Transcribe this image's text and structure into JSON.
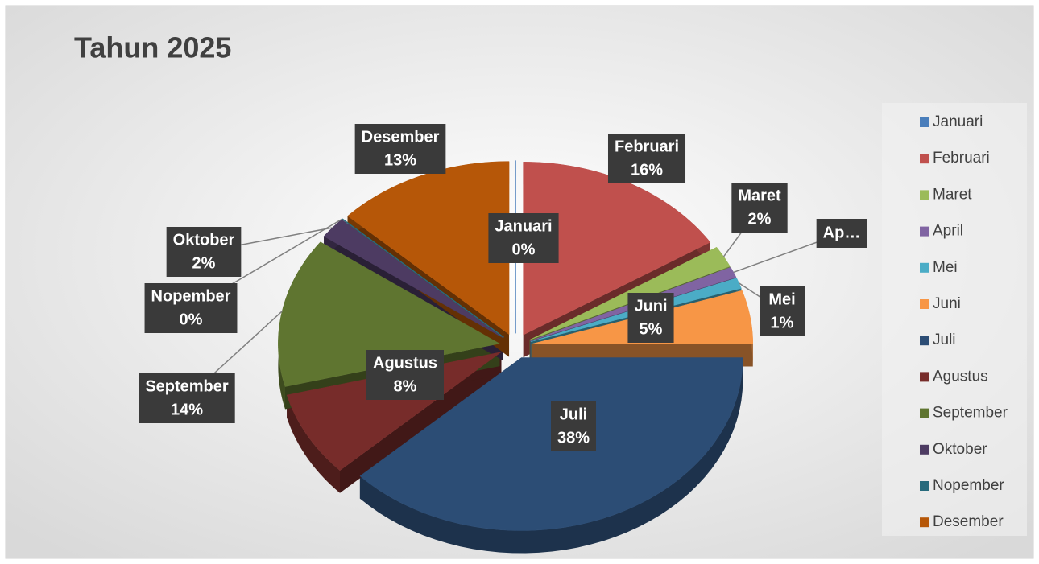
{
  "chart_data": {
    "type": "pie",
    "title": "Tahun  2025",
    "categories": [
      "Januari",
      "Februari",
      "Maret",
      "April",
      "Mei",
      "Juni",
      "Juli",
      "Agustus",
      "September",
      "Oktober",
      "Nopember",
      "Desember"
    ],
    "values": [
      0,
      16,
      2,
      1,
      1,
      5,
      38,
      8,
      14,
      2,
      0,
      13
    ],
    "value_labels": [
      "0%",
      "16%",
      "2%",
      null,
      "1%",
      "5%",
      "38%",
      "8%",
      "14%",
      "2%",
      "0%",
      "13%"
    ],
    "label_names": [
      "Januari",
      "Februari",
      "Maret",
      "Ap…",
      "Mei",
      "Juni",
      "Juli",
      "Agustus",
      "September",
      "Oktober",
      "Nopember",
      "Desember"
    ],
    "colors": [
      "#4a7ebb",
      "#c0504d",
      "#9bbb59",
      "#8064a2",
      "#4bacc6",
      "#f79646",
      "#2c4d75",
      "#772c2a",
      "#5f7530",
      "#4d3b62",
      "#276a7c",
      "#b65708"
    ],
    "legend": "right"
  }
}
